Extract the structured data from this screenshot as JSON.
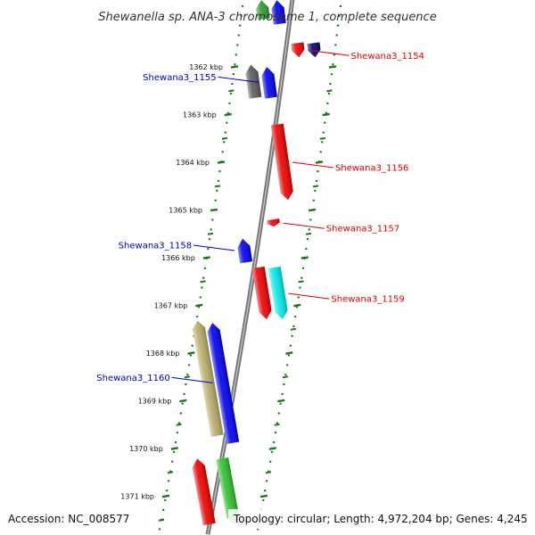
{
  "title": "Shewanella sp. ANA-3 chromosome 1, complete sequence",
  "accession": "Accession: NC_008577",
  "topology": "Topology: circular; Length: 4,972,204 bp; Genes: 4,245",
  "colors": {
    "backbone": "#888888",
    "ticks": "#1a7a1a",
    "label_forward": "#0000cc",
    "label_reverse": "#dd0000"
  },
  "ticks": [
    {
      "label": "1362 kbp",
      "kbp": 1362
    },
    {
      "label": "1363 kbp",
      "kbp": 1363
    },
    {
      "label": "1364 kbp",
      "kbp": 1364
    },
    {
      "label": "1365 kbp",
      "kbp": 1365
    },
    {
      "label": "1366 kbp",
      "kbp": 1366
    },
    {
      "label": "1367 kbp",
      "kbp": 1367
    },
    {
      "label": "1368 kbp",
      "kbp": 1368
    },
    {
      "label": "1369 kbp",
      "kbp": 1369
    },
    {
      "label": "1370 kbp",
      "kbp": 1370
    },
    {
      "label": "1371 kbp",
      "kbp": 1371
    }
  ],
  "genes": [
    {
      "label": "",
      "strand": "forward",
      "track": 1,
      "start_kbp": 1360.6,
      "end_kbp": 1361.0,
      "color": "#2f9e2f"
    },
    {
      "label": "",
      "strand": "forward",
      "track": 0,
      "start_kbp": 1360.6,
      "end_kbp": 1361.1,
      "color": "#0000ee"
    },
    {
      "label": "Shewana3_1154",
      "strand": "reverse",
      "track": 0,
      "start_kbp": 1361.5,
      "end_kbp": 1361.8,
      "color": "#ee0000"
    },
    {
      "label": "",
      "strand": "reverse",
      "track": 1,
      "start_kbp": 1361.5,
      "end_kbp": 1361.8,
      "color": "#00006e"
    },
    {
      "label": "",
      "strand": "forward",
      "track": 1,
      "start_kbp": 1361.95,
      "end_kbp": 1362.65,
      "color": "#5a5a5a"
    },
    {
      "label": "Shewana3_1155",
      "strand": "forward",
      "track": 0,
      "start_kbp": 1362.0,
      "end_kbp": 1362.65,
      "color": "#0000ee"
    },
    {
      "label": "Shewana3_1156",
      "strand": "reverse",
      "track": 0,
      "start_kbp": 1363.2,
      "end_kbp": 1364.8,
      "color": "#ee0000"
    },
    {
      "label": "Shewana3_1157",
      "strand": "reverse",
      "track": 0,
      "start_kbp": 1365.2,
      "end_kbp": 1365.35,
      "color": "#ee0000"
    },
    {
      "label": "Shewana3_1158",
      "strand": "forward",
      "track": 0,
      "start_kbp": 1365.6,
      "end_kbp": 1366.1,
      "color": "#0000ee"
    },
    {
      "label": "",
      "strand": "reverse",
      "track": 0,
      "start_kbp": 1366.2,
      "end_kbp": 1367.3,
      "color": "#ee0000"
    },
    {
      "label": "Shewana3_1159",
      "strand": "reverse",
      "track": 1,
      "start_kbp": 1366.2,
      "end_kbp": 1367.3,
      "color": "#00e8e8"
    },
    {
      "label": "Shewana3_1160",
      "strand": "forward",
      "track": 0,
      "start_kbp": 1367.35,
      "end_kbp": 1369.9,
      "color": "#0000ee"
    },
    {
      "label": "",
      "strand": "forward",
      "track": 1,
      "start_kbp": 1367.3,
      "end_kbp": 1369.75,
      "color": "#b8ad6a"
    },
    {
      "label": "",
      "strand": "forward",
      "track": 0,
      "start_kbp": 1370.2,
      "end_kbp": 1371.6,
      "color": "#ee0000"
    },
    {
      "label": "",
      "strand": "reverse",
      "track": 0,
      "start_kbp": 1370.2,
      "end_kbp": 1371.6,
      "color": "#2fbf2f"
    }
  ]
}
